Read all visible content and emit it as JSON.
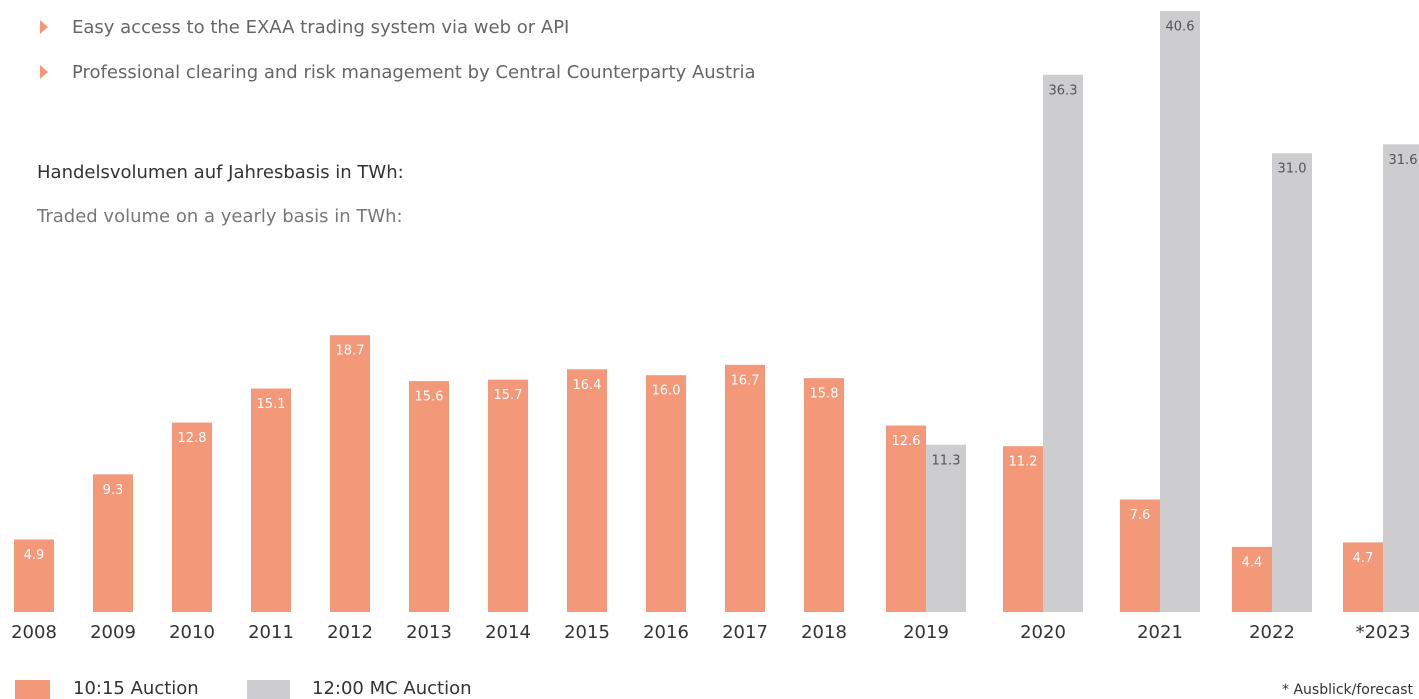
{
  "bullets": [
    "Easy access to the EXAA trading system via web or API",
    "Professional clearing and risk management by Central Counterparty Austria"
  ],
  "chart_data": {
    "type": "bar",
    "title": "Handelsvolumen auf Jahresbasis in TWh:",
    "subtitle": "Traded volume on a yearly basis in TWh:",
    "categories": [
      "2008",
      "2009",
      "2010",
      "2011",
      "2012",
      "2013",
      "2014",
      "2015",
      "2016",
      "2017",
      "2018",
      "2019",
      "2020",
      "2021",
      "2022",
      "*2023"
    ],
    "series": [
      {
        "name": "10:15 Auction",
        "color": "#f4987a",
        "values": [
          4.9,
          9.3,
          12.8,
          15.1,
          18.7,
          15.6,
          15.7,
          16.4,
          16.0,
          16.7,
          15.8,
          12.6,
          11.2,
          7.6,
          4.4,
          4.7
        ]
      },
      {
        "name": "12:00 MC Auction",
        "color": "#cdcdcf",
        "values": [
          null,
          null,
          null,
          null,
          null,
          null,
          null,
          null,
          null,
          null,
          null,
          11.3,
          36.3,
          40.6,
          31.0,
          31.6
        ]
      }
    ],
    "footnote": "* Ausblick/forecast"
  }
}
